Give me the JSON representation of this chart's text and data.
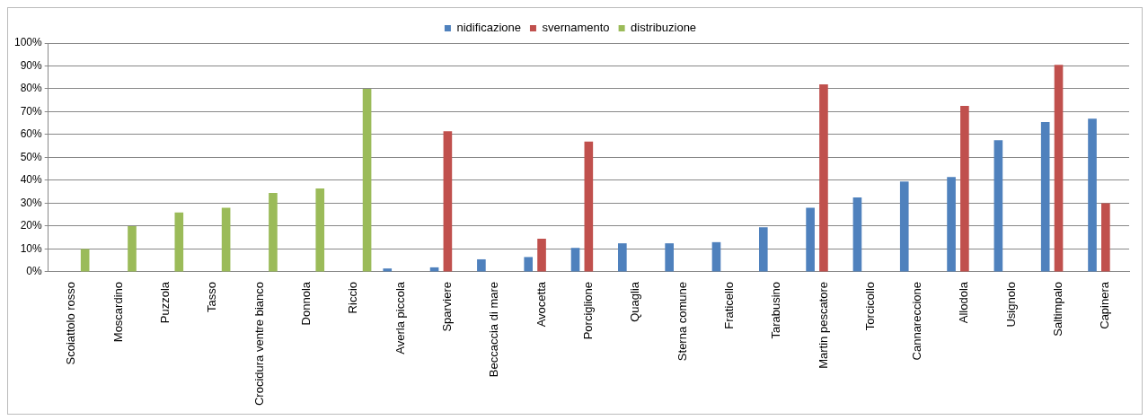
{
  "chart_data": {
    "type": "bar",
    "categories": [
      "Scoiattolo rosso",
      "Moscardino",
      "Puzzola",
      "Tasso",
      "Crocidura ventre bianco",
      "Donnola",
      "Riccio",
      "Averla piccola",
      "Sparviere",
      "Beccaccia di mare",
      "Avocetta",
      "Porciglione",
      "Quaglia",
      "Sterna comune",
      "Fraticello",
      "Tarabusino",
      "Martin pescatore",
      "Torcicollo",
      "Cannareccione",
      "Allodola",
      "Usignolo",
      "Saltimpalo",
      "Capinera"
    ],
    "series": [
      {
        "name": "nidificazione",
        "color": "#4f81bd",
        "values": [
          null,
          null,
          null,
          null,
          null,
          null,
          null,
          1.5,
          2,
          5.5,
          6.5,
          10.5,
          12.5,
          12.5,
          13,
          19.5,
          28,
          32.5,
          39.5,
          41.5,
          57.5,
          65.5,
          67
        ]
      },
      {
        "name": "svernamento",
        "color": "#c0504d",
        "values": [
          null,
          null,
          null,
          null,
          null,
          null,
          null,
          null,
          61.5,
          null,
          14.5,
          57,
          null,
          null,
          null,
          null,
          82,
          null,
          null,
          72.5,
          null,
          90.5,
          30
        ]
      },
      {
        "name": "distribuzione",
        "color": "#9bbb59",
        "values": [
          10,
          20,
          26,
          28,
          34.5,
          36.5,
          80,
          null,
          null,
          null,
          null,
          null,
          null,
          null,
          null,
          null,
          null,
          null,
          null,
          null,
          null,
          null,
          null
        ]
      }
    ],
    "ylim": [
      0,
      100
    ],
    "yticks": [
      {
        "value": 0,
        "label": "0%"
      },
      {
        "value": 10,
        "label": "10%"
      },
      {
        "value": 20,
        "label": "20%"
      },
      {
        "value": 30,
        "label": "30%"
      },
      {
        "value": 40,
        "label": "40%"
      },
      {
        "value": 50,
        "label": "50%"
      },
      {
        "value": 60,
        "label": "60%"
      },
      {
        "value": 70,
        "label": "70%"
      },
      {
        "value": 80,
        "label": "80%"
      },
      {
        "value": 90,
        "label": "90%"
      },
      {
        "value": 100,
        "label": "100%"
      }
    ],
    "grid": "y",
    "legend": "top"
  }
}
